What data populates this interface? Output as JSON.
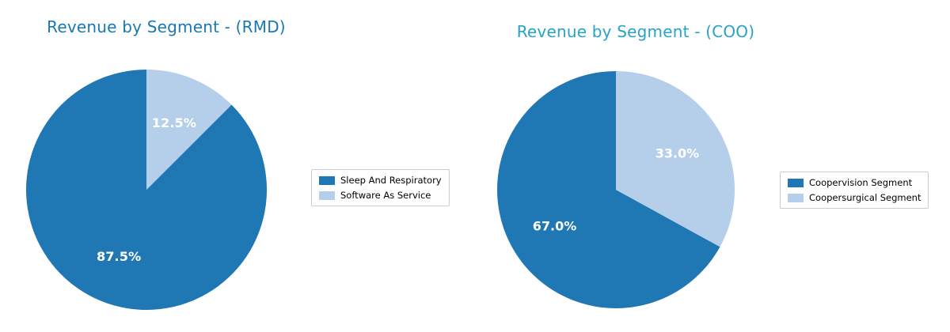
{
  "chart_data": [
    {
      "type": "pie",
      "title": "Revenue by Segment - (RMD)",
      "title_color": "#1778b5",
      "categories": [
        "Sleep And Respiratory",
        "Software As Service"
      ],
      "values": [
        87.5,
        12.5
      ],
      "labels": [
        "87.5%",
        "12.5%"
      ],
      "colors": [
        "#1f77b4",
        "#b5cee9"
      ],
      "start_angle": 90,
      "direction": "counterclockwise",
      "pct_distance": 0.6,
      "legend_position": "right",
      "grid": false
    },
    {
      "type": "pie",
      "title": "Revenue by Segment - (COO)",
      "title_color": "#27a3c8",
      "categories": [
        "Coopervision Segment",
        "Coopersurgical Segment"
      ],
      "values": [
        67.0,
        33.0
      ],
      "labels": [
        "67.0%",
        "33.0%"
      ],
      "colors": [
        "#1f77b4",
        "#b5cee9"
      ],
      "start_angle": 90,
      "direction": "counterclockwise",
      "pct_distance": 0.6,
      "legend_position": "right",
      "grid": false
    }
  ]
}
